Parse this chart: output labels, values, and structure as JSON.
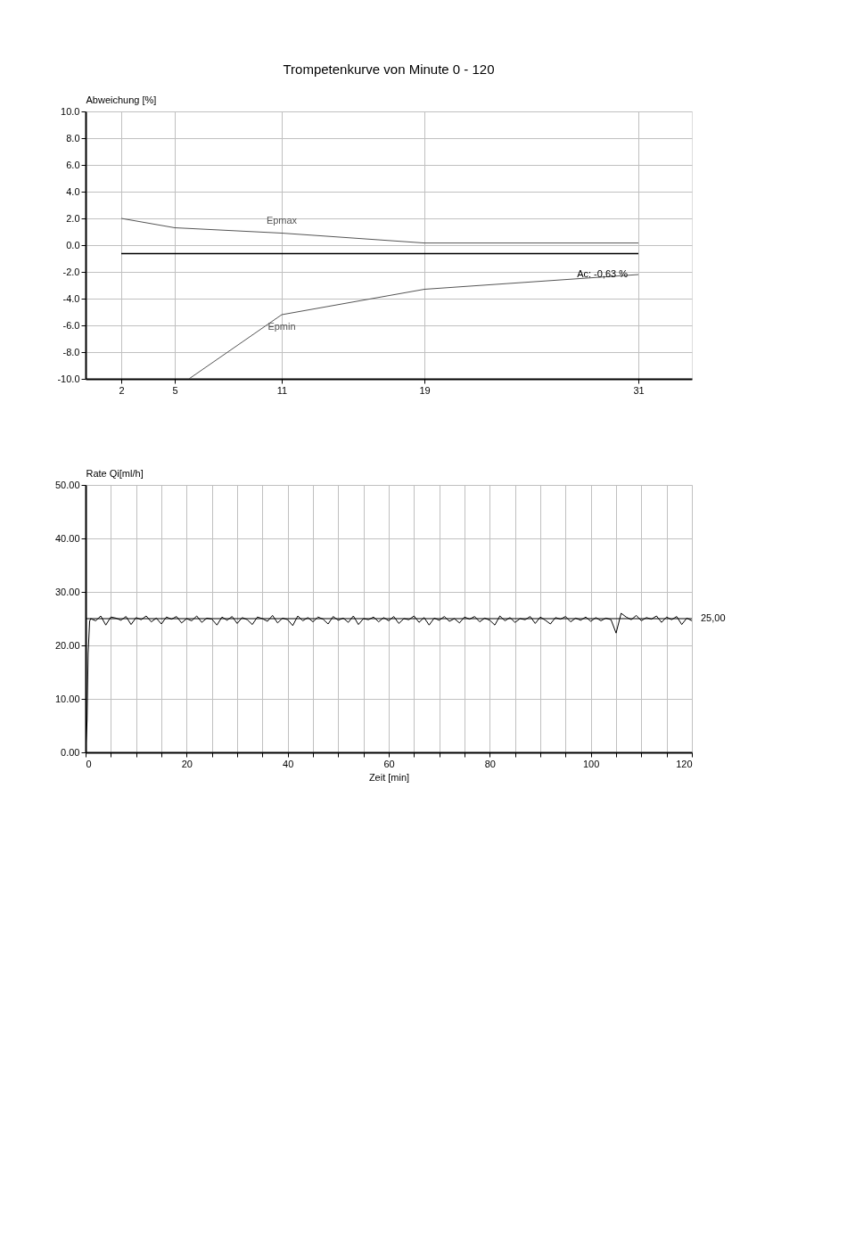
{
  "chart_data": [
    {
      "type": "line",
      "title": "Trompetenkurve von Minute 0 - 120",
      "ylabel": "Abweichung  [%]",
      "xlim": [
        0,
        34
      ],
      "xticks": [
        2,
        5,
        11,
        19,
        31
      ],
      "ylim": [
        -10,
        10
      ],
      "yticks": [
        {
          "value": -10,
          "label": "-10.0"
        },
        {
          "value": -8,
          "label": "-8.0"
        },
        {
          "value": -6,
          "label": "-6.0"
        },
        {
          "value": -4,
          "label": "-4.0"
        },
        {
          "value": -2,
          "label": "-2.0"
        },
        {
          "value": 0,
          "label": "0.0"
        },
        {
          "value": 2,
          "label": "2.0"
        },
        {
          "value": 4,
          "label": "4.0"
        },
        {
          "value": 6,
          "label": "6.0"
        },
        {
          "value": 8,
          "label": "8.0"
        },
        {
          "value": 10,
          "label": "10.0"
        }
      ],
      "grid": true,
      "marker": "none",
      "line_style": "solid",
      "legend": false,
      "series": [
        {
          "name": "Epmax",
          "color": "#555555",
          "x": [
            2,
            5,
            11,
            19,
            31
          ],
          "values": [
            2.0,
            1.3,
            0.9,
            0.16,
            0.16
          ]
        },
        {
          "name": "Epmin",
          "color": "#555555",
          "x": [
            5.8,
            11,
            19,
            31
          ],
          "values": [
            -10,
            -5.2,
            -3.3,
            -2.2
          ]
        },
        {
          "color": "#000000",
          "x": [
            2,
            31
          ],
          "values": [
            -0.63,
            -0.63
          ]
        }
      ],
      "annotations": [
        {
          "text": "Ac: -0,63 %",
          "x": 31,
          "y": -2.2
        }
      ]
    },
    {
      "type": "line",
      "ylabel": "Rate  Qi[ml/h]",
      "xlabel": "Zeit [min]",
      "xlim": [
        0,
        120
      ],
      "xticks": [
        0,
        {
          "value": 5,
          "label": null
        },
        {
          "value": 10,
          "label": null
        },
        {
          "value": 15,
          "label": null
        },
        20,
        {
          "value": 25,
          "label": null
        },
        {
          "value": 30,
          "label": null
        },
        {
          "value": 35,
          "label": null
        },
        40,
        {
          "value": 45,
          "label": null
        },
        {
          "value": 50,
          "label": null
        },
        {
          "value": 55,
          "label": null
        },
        60,
        {
          "value": 65,
          "label": null
        },
        {
          "value": 70,
          "label": null
        },
        {
          "value": 75,
          "label": null
        },
        80,
        {
          "value": 85,
          "label": null
        },
        {
          "value": 90,
          "label": null
        },
        {
          "value": 95,
          "label": null
        },
        100,
        {
          "value": 105,
          "label": null
        },
        {
          "value": 110,
          "label": null
        },
        {
          "value": 115,
          "label": null
        },
        120
      ],
      "ylim": [
        0,
        50
      ],
      "yticks": [
        {
          "value": 0,
          "label": "0.00"
        },
        {
          "value": 10,
          "label": "10.00"
        },
        {
          "value": 20,
          "label": "20.00"
        },
        {
          "value": 30,
          "label": "30.00"
        },
        {
          "value": 40,
          "label": "40.00"
        },
        {
          "value": 50,
          "label": "50.00"
        }
      ],
      "grid": true,
      "marker": "none",
      "line_style": "solid",
      "legend": false,
      "ref_lines": [
        {
          "axis": "y",
          "value": 25,
          "label": "25,00",
          "color": "#000000"
        }
      ],
      "series": [
        {
          "color": "#000000",
          "x": [
            0,
            0.3,
            0.5,
            0.8,
            1,
            2,
            3,
            4,
            5,
            6,
            7,
            8,
            9,
            10,
            11,
            12,
            13,
            14,
            15,
            16,
            17,
            18,
            19,
            20,
            21,
            22,
            23,
            24,
            25,
            26,
            27,
            28,
            29,
            30,
            31,
            32,
            33,
            34,
            35,
            36,
            37,
            38,
            39,
            40,
            41,
            42,
            43,
            44,
            45,
            46,
            47,
            48,
            49,
            50,
            51,
            52,
            53,
            54,
            55,
            56,
            57,
            58,
            59,
            60,
            61,
            62,
            63,
            64,
            65,
            66,
            67,
            68,
            69,
            70,
            71,
            72,
            73,
            74,
            75,
            76,
            77,
            78,
            79,
            80,
            81,
            82,
            83,
            84,
            85,
            86,
            87,
            88,
            89,
            90,
            91,
            92,
            93,
            94,
            95,
            96,
            97,
            98,
            99,
            100,
            101,
            102,
            103,
            104,
            105,
            106,
            107,
            108,
            109,
            110,
            111,
            112,
            113,
            114,
            115,
            116,
            117,
            118,
            119,
            120
          ],
          "values": [
            0,
            6,
            18.5,
            24.5,
            25,
            24.6,
            25.5,
            23.8,
            25.3,
            25.1,
            24.7,
            25.4,
            23.9,
            25.2,
            24.8,
            25.5,
            24.4,
            25.1,
            24.0,
            25.3,
            24.9,
            25.4,
            24.2,
            25.0,
            24.6,
            25.5,
            24.3,
            25.1,
            24.9,
            23.8,
            25.3,
            24.7,
            25.4,
            24.1,
            25.2,
            24.8,
            23.9,
            25.3,
            25.0,
            24.5,
            25.6,
            24.2,
            25.1,
            24.8,
            23.7,
            25.5,
            24.6,
            25.2,
            24.4,
            25.3,
            24.9,
            24.0,
            25.4,
            24.7,
            25.1,
            24.3,
            25.5,
            23.9,
            25.0,
            24.8,
            25.3,
            24.4,
            25.2,
            24.6,
            25.4,
            24.1,
            25.0,
            24.8,
            25.5,
            24.3,
            25.2,
            23.8,
            25.1,
            24.7,
            25.4,
            24.5,
            25.0,
            24.2,
            25.3,
            24.9,
            25.4,
            24.4,
            25.1,
            24.7,
            23.8,
            25.5,
            24.6,
            25.2,
            24.3,
            25.0,
            24.8,
            25.4,
            24.1,
            25.3,
            24.7,
            24.0,
            25.2,
            24.9,
            25.4,
            24.4,
            25.1,
            24.7,
            25.3,
            24.5,
            25.2,
            24.6,
            25.1,
            24.8,
            22.3,
            26.0,
            25.3,
            24.8,
            25.6,
            24.6,
            25.2,
            24.9,
            25.5,
            24.3,
            25.3,
            24.8,
            25.4,
            23.9,
            25.1,
            24.6
          ]
        }
      ]
    }
  ]
}
